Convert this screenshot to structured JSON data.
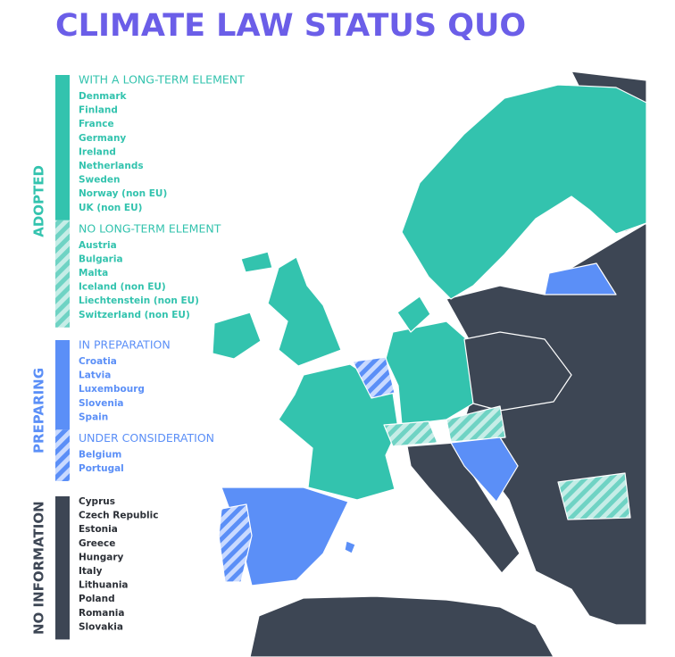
{
  "title": "CLIMATE LAW STATUS QUO",
  "legend": {
    "groups": [
      {
        "label": "ADOPTED",
        "sections": [
          {
            "heading": "WITH A LONG-TERM ELEMENT",
            "countries": [
              "Denmark",
              "Finland",
              "France",
              "Germany",
              "Ireland",
              "Netherlands",
              "Sweden",
              "Norway (non EU)",
              "UK (non EU)"
            ]
          },
          {
            "heading": "NO LONG-TERM ELEMENT",
            "countries": [
              "Austria",
              "Bulgaria",
              "Malta",
              "Iceland (non EU)",
              "Liechtenstein (non EU)",
              "Switzerland (non EU)"
            ]
          }
        ]
      },
      {
        "label": "PREPARING",
        "sections": [
          {
            "heading": "IN PREPARATION",
            "countries": [
              "Croatia",
              "Latvia",
              "Luxembourg",
              "Slovenia",
              "Spain"
            ]
          },
          {
            "heading": "UNDER CONSIDERATION",
            "countries": [
              "Belgium",
              "Portugal"
            ]
          }
        ]
      },
      {
        "label": "NO INFORMATION",
        "sections": [
          {
            "countries": [
              "Cyprus",
              "Czech Republic",
              "Estonia",
              "Greece",
              "Hungary",
              "Italy",
              "Lithuania",
              "Poland",
              "Romania",
              "Slovakia"
            ]
          }
        ]
      }
    ]
  }
}
